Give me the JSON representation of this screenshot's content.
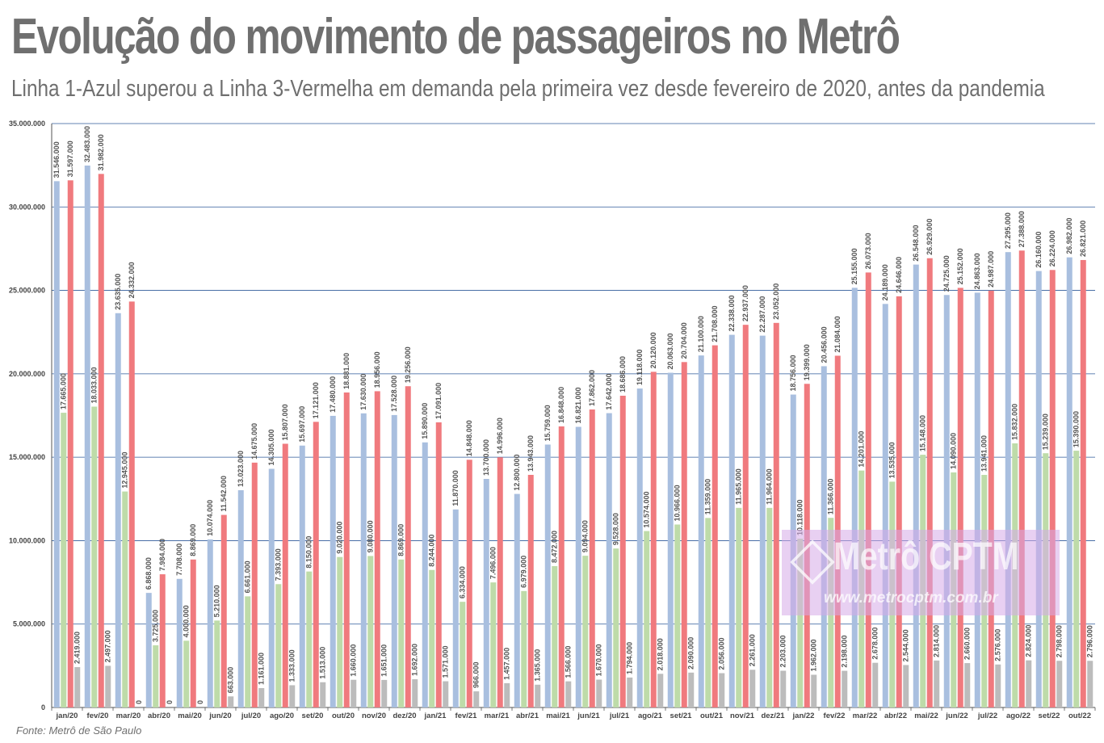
{
  "header": {
    "title": "Evolução do movimento de passageiros no Metrô",
    "subtitle": "Linha 1-Azul superou a Linha 3-Vermelha em demanda pela primeira vez desde fevereiro de 2020, antes da pandemia"
  },
  "source": "Fonte: Metrô de São Paulo",
  "watermark": {
    "brand": "Metrô CPTM",
    "url": "www.metrocptm.com.br"
  },
  "chart_data": {
    "type": "bar",
    "ylim": [
      0,
      35000000
    ],
    "yticks": [
      0,
      5000000,
      10000000,
      15000000,
      20000000,
      25000000,
      30000000,
      35000000
    ],
    "ytick_labels": [
      "0",
      "5.000.000",
      "10.000.000",
      "15.000.000",
      "20.000.000",
      "25.000.000",
      "30.000.000",
      "35.000.000"
    ],
    "grid": true,
    "categories": [
      "jan/20",
      "fev/20",
      "mar/20",
      "abr/20",
      "mai/20",
      "jun/20",
      "jul/20",
      "ago/20",
      "set/20",
      "out/20",
      "nov/20",
      "dez/20",
      "jan/21",
      "fev/21",
      "mar/21",
      "abr/21",
      "mai/21",
      "jun/21",
      "jul/21",
      "ago/21",
      "set/21",
      "out/21",
      "nov/21",
      "dez/21",
      "jan/22",
      "fev/22",
      "mar/22",
      "abr/22",
      "mai/22",
      "jun/22",
      "jul/22",
      "ago/22",
      "set/22",
      "out/22"
    ],
    "series": [
      {
        "color": "#a9bfdf",
        "values": [
          31546000,
          32483000,
          23635000,
          6868000,
          7708000,
          10074000,
          13023000,
          14305000,
          15697000,
          17480000,
          17630000,
          17528000,
          15890000,
          11870000,
          13700000,
          12800000,
          15759000,
          16821000,
          17642000,
          19118000,
          20063000,
          21100000,
          22338000,
          22287000,
          18756000,
          20456000,
          25155000,
          24189000,
          26548000,
          24725000,
          24863000,
          27295000,
          26160000,
          26982000
        ],
        "labels": [
          "31.546.000",
          "32.483.000",
          "23.635.000",
          "6.868.000",
          "7.708.000",
          "10.074.000",
          "13.023.000",
          "14.305.000",
          "15.697.000",
          "17.480.000",
          "17.630.000",
          "17.528.000",
          "15.890.000",
          "11.870.000",
          "13.700.000",
          "12.800.000",
          "15.759.000",
          "16.821.000",
          "17.642.000",
          "19.118.000",
          "20.063.000",
          "21.100.000",
          "22.338.000",
          "22.287.000",
          "18.756.000",
          "20.456.000",
          "25.155.000",
          "24.189.000",
          "26.548.000",
          "24.725.000",
          "24.863.000",
          "27.295.000",
          "26.160.000",
          "26.982.000"
        ]
      },
      {
        "color": "#bedba9",
        "values": [
          17665000,
          18033000,
          12945000,
          3725000,
          4000000,
          5210000,
          6661000,
          7393000,
          8150000,
          9020000,
          9080000,
          8869000,
          8244000,
          6334000,
          7496000,
          6979000,
          8472000,
          9094000,
          9528000,
          10574000,
          10966000,
          11359000,
          11965000,
          11964000,
          10118000,
          11366000,
          14201000,
          13535000,
          15148000,
          14090000,
          13941000,
          15832000,
          15239000,
          15390000
        ],
        "labels": [
          "17.665.000",
          "18.033.000",
          "12.945.000",
          "3.725.000",
          "4.000.000",
          "5.210.000",
          "6.661.000",
          "7.393.000",
          "8.150.000",
          "9.020.000",
          "9.080.000",
          "8.869.000",
          "8.244.000",
          "6.334.000",
          "7.496.000",
          "6.979.000",
          "8.472.000",
          "9.094.000",
          "9.528.000",
          "10.574.000",
          "10.966.000",
          "11.359.000",
          "11.965.000",
          "11.964.000",
          "10.118.000",
          "11.366.000",
          "14.201.000",
          "13.535.000",
          "15.148.000",
          "14.090.000",
          "13.941.000",
          "15.832.000",
          "15.239.000",
          "15.390.000"
        ]
      },
      {
        "color": "#f07a7e",
        "values": [
          31597000,
          31982000,
          24332000,
          7984000,
          8869000,
          11542000,
          14675000,
          15807000,
          17121000,
          18881000,
          18956000,
          19256000,
          17091000,
          14848000,
          14996000,
          13943000,
          16848000,
          17862000,
          18686000,
          20120000,
          20704000,
          21708000,
          22937000,
          23052000,
          19399000,
          21084000,
          26073000,
          24646000,
          26929000,
          25152000,
          24987000,
          27388000,
          26224000,
          26821000
        ],
        "labels": [
          "31.597.000",
          "31.982.000",
          "24.332.000",
          "7.984.000",
          "8.869.000",
          "11.542.000",
          "14.675.000",
          "15.807.000",
          "17.121.000",
          "18.881.000",
          "18.956.000",
          "19.256.000",
          "17.091.000",
          "14.848.000",
          "14.996.000",
          "13.943.000",
          "16.848.000",
          "17.862.000",
          "18.686.000",
          "20.120.000",
          "20.704.000",
          "21.708.000",
          "22.937.000",
          "23.052.000",
          "19.399.000",
          "21.084.000",
          "26.073.000",
          "24.646.000",
          "26.929.000",
          "25.152.000",
          "24.987.000",
          "27.388.000",
          "26.224.000",
          "26.821.000"
        ]
      },
      {
        "color": "#bcbcbc",
        "values": [
          2419000,
          2497000,
          0,
          0,
          0,
          663000,
          1161000,
          1333000,
          1513000,
          1660000,
          1651000,
          1692000,
          1571000,
          966000,
          1457000,
          1365000,
          1566000,
          1670000,
          1794000,
          2018000,
          2090000,
          2056000,
          2261000,
          2203000,
          1962000,
          2198000,
          2678000,
          2544000,
          2814000,
          2660000,
          2576000,
          2824000,
          2798000,
          2796000
        ],
        "labels": [
          "2.419.000",
          "2.497.000",
          "0",
          "0",
          "0",
          "663.000",
          "1.161.000",
          "1.333.000",
          "1.513.000",
          "1.660.000",
          "1.651.000",
          "1.692.000",
          "1.571.000",
          "966.000",
          "1.457.000",
          "1.365.000",
          "1.566.000",
          "1.670.000",
          "1.794.000",
          "2.018.000",
          "2.090.000",
          "2.056.000",
          "2.261.000",
          "2.203.000",
          "1.962.000",
          "2.198.000",
          "2.678.000",
          "2.544.000",
          "2.814.000",
          "2.660.000",
          "2.576.000",
          "2.824.000",
          "2.798.000",
          "2.796.000"
        ]
      }
    ]
  }
}
